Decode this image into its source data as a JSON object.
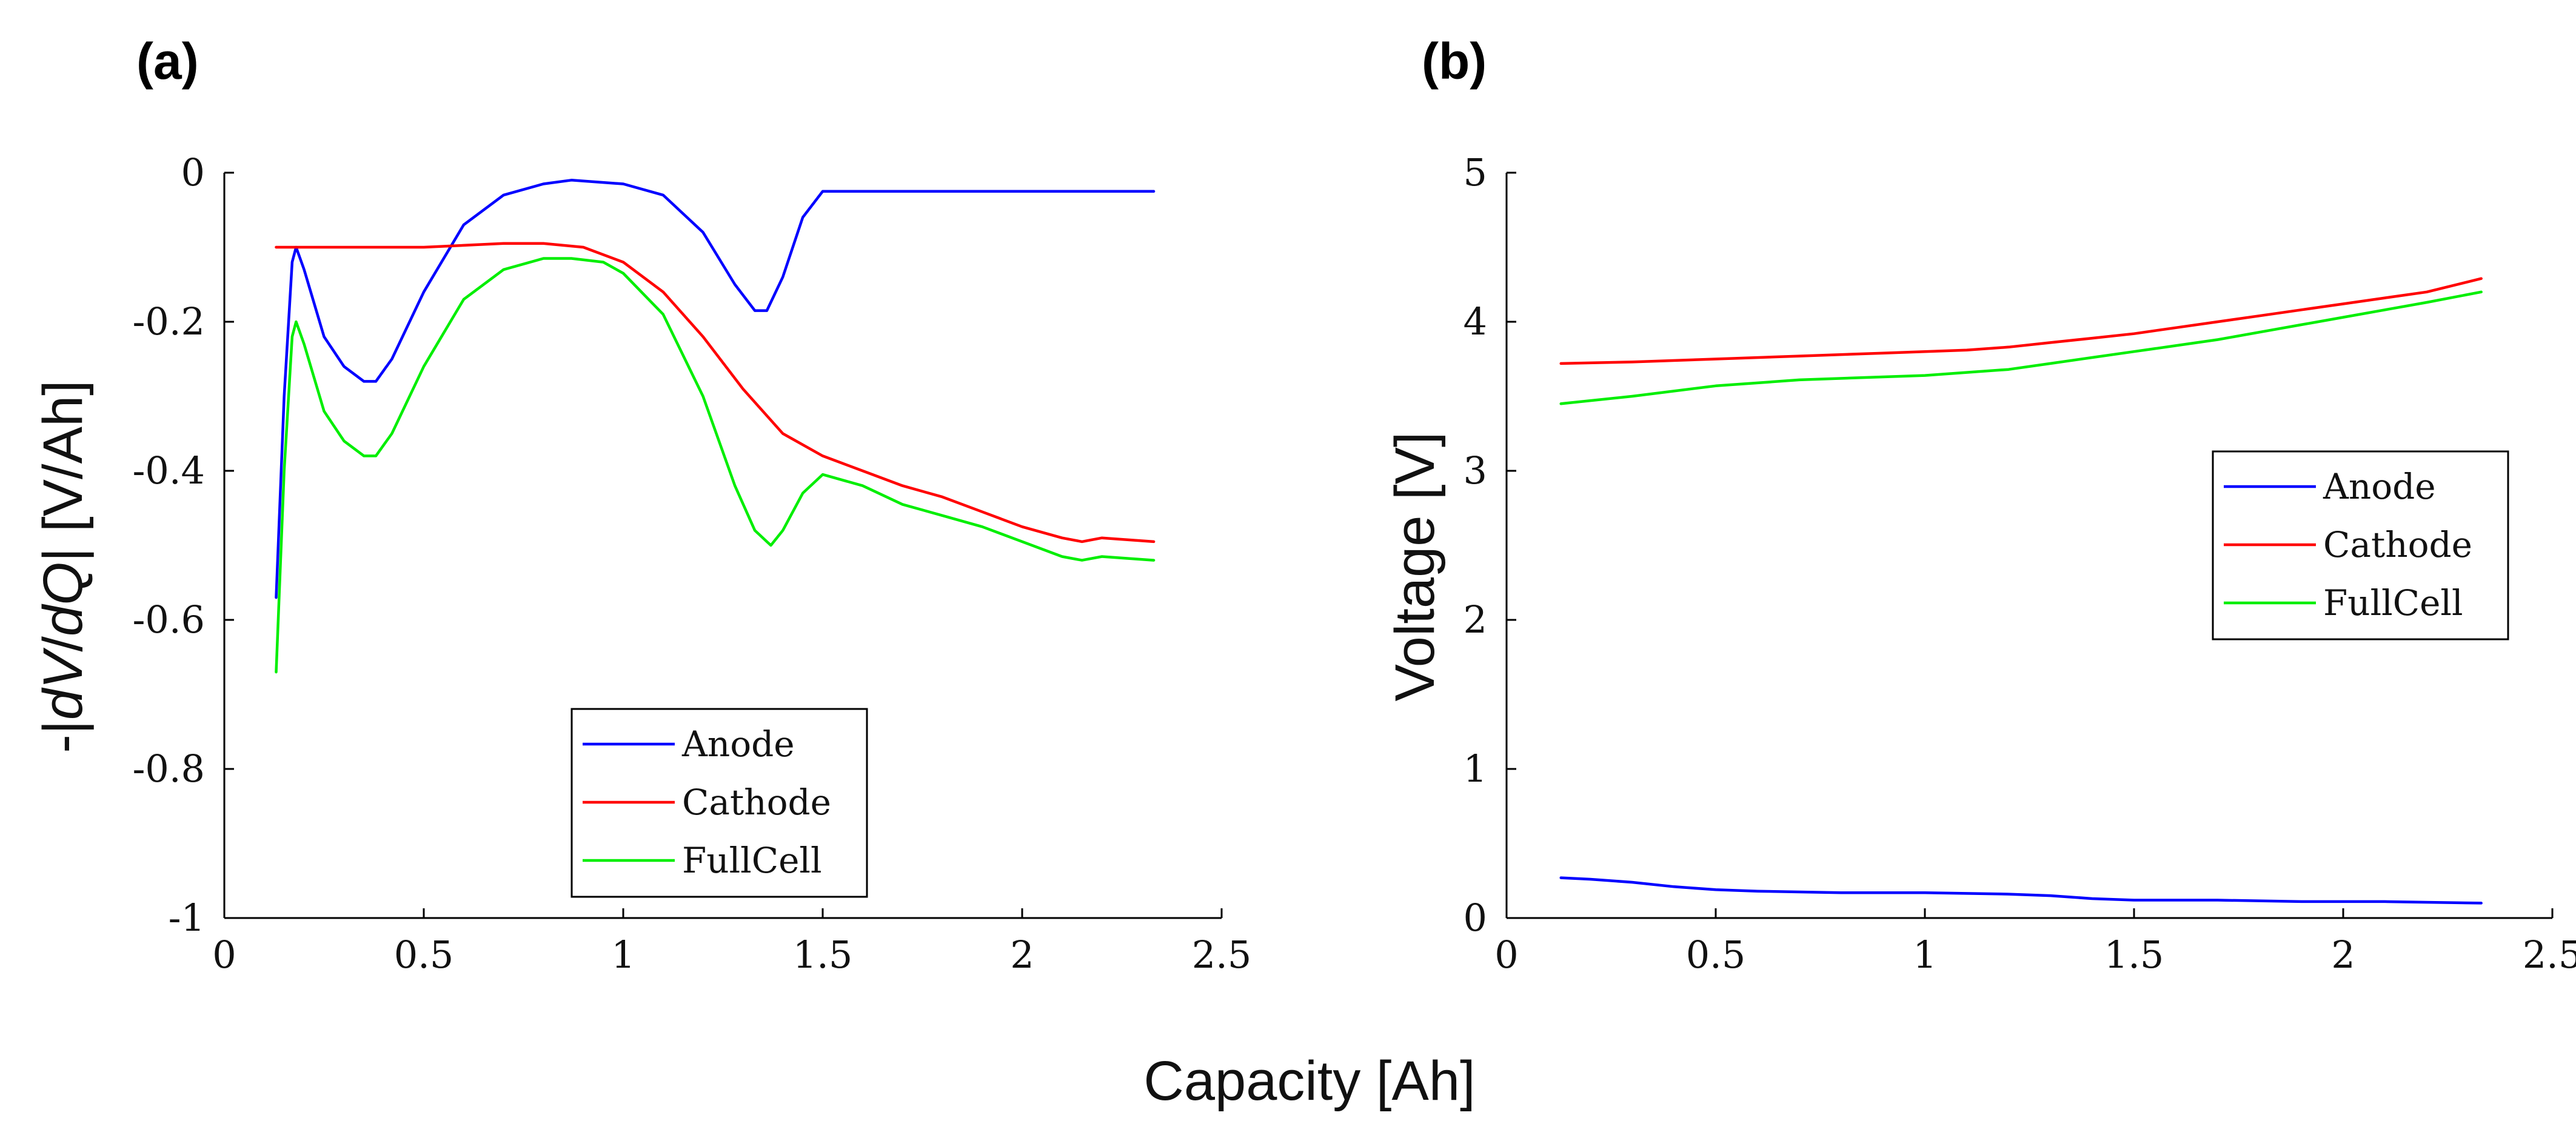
{
  "figure": {
    "xlabel": "Capacity [Ah]"
  },
  "chart_data": [
    {
      "type": "line",
      "panel_label": "(a)",
      "title": "",
      "xlabel": "",
      "ylabel": "-|dV/dQ| [V/Ah]",
      "ylabel_parts": [
        "-|",
        "dV",
        "/",
        "dQ",
        "| [V/Ah]"
      ],
      "xlim": [
        0,
        2.5
      ],
      "ylim": [
        -1,
        0
      ],
      "xticks": [
        0,
        0.5,
        1,
        1.5,
        2,
        2.5
      ],
      "xtick_labels": [
        "0",
        "0.5",
        "1",
        "1.5",
        "2",
        "2.5"
      ],
      "yticks": [
        -1,
        -0.8,
        -0.6,
        -0.4,
        -0.2,
        0
      ],
      "ytick_labels": [
        "-1",
        "-0.8",
        "-0.6",
        "-0.4",
        "-0.2",
        "0"
      ],
      "grid": false,
      "legend_position": "lower-center",
      "series": [
        {
          "name": "Anode",
          "color": "#0000ff",
          "x": [
            0.13,
            0.15,
            0.17,
            0.18,
            0.2,
            0.25,
            0.3,
            0.35,
            0.38,
            0.42,
            0.5,
            0.6,
            0.7,
            0.8,
            0.87,
            1.0,
            1.1,
            1.2,
            1.28,
            1.33,
            1.36,
            1.4,
            1.45,
            1.5,
            1.6,
            1.8,
            2.0,
            2.2,
            2.33
          ],
          "y": [
            -0.57,
            -0.3,
            -0.12,
            -0.1,
            -0.13,
            -0.22,
            -0.26,
            -0.28,
            -0.28,
            -0.25,
            -0.16,
            -0.07,
            -0.03,
            -0.015,
            -0.01,
            -0.015,
            -0.03,
            -0.08,
            -0.15,
            -0.185,
            -0.185,
            -0.14,
            -0.06,
            -0.025,
            -0.025,
            -0.025,
            -0.025,
            -0.025,
            -0.025
          ]
        },
        {
          "name": "Cathode",
          "color": "#ff0000",
          "x": [
            0.13,
            0.3,
            0.5,
            0.7,
            0.8,
            0.9,
            1.0,
            1.1,
            1.2,
            1.3,
            1.4,
            1.5,
            1.6,
            1.7,
            1.8,
            1.9,
            2.0,
            2.1,
            2.15,
            2.2,
            2.33
          ],
          "y": [
            -0.1,
            -0.1,
            -0.1,
            -0.095,
            -0.095,
            -0.1,
            -0.12,
            -0.16,
            -0.22,
            -0.29,
            -0.35,
            -0.38,
            -0.4,
            -0.42,
            -0.435,
            -0.455,
            -0.475,
            -0.49,
            -0.495,
            -0.49,
            -0.495
          ]
        },
        {
          "name": "FullCell",
          "color": "#00ee00",
          "x": [
            0.13,
            0.15,
            0.17,
            0.18,
            0.2,
            0.25,
            0.3,
            0.35,
            0.38,
            0.42,
            0.5,
            0.6,
            0.7,
            0.8,
            0.87,
            0.95,
            1.0,
            1.1,
            1.2,
            1.28,
            1.33,
            1.37,
            1.4,
            1.45,
            1.5,
            1.6,
            1.7,
            1.8,
            1.9,
            2.0,
            2.1,
            2.15,
            2.2,
            2.33
          ],
          "y": [
            -0.67,
            -0.4,
            -0.22,
            -0.2,
            -0.23,
            -0.32,
            -0.36,
            -0.38,
            -0.38,
            -0.35,
            -0.26,
            -0.17,
            -0.13,
            -0.115,
            -0.115,
            -0.12,
            -0.135,
            -0.19,
            -0.3,
            -0.42,
            -0.48,
            -0.5,
            -0.48,
            -0.43,
            -0.405,
            -0.42,
            -0.445,
            -0.46,
            -0.475,
            -0.495,
            -0.515,
            -0.52,
            -0.515,
            -0.52
          ]
        }
      ]
    },
    {
      "type": "line",
      "panel_label": "(b)",
      "title": "",
      "xlabel": "",
      "ylabel": "Voltage  [V]",
      "xlim": [
        0,
        2.5
      ],
      "ylim": [
        0,
        5
      ],
      "xticks": [
        0,
        0.5,
        1,
        1.5,
        2,
        2.5
      ],
      "xtick_labels": [
        "0",
        "0.5",
        "1",
        "1.5",
        "2",
        "2.5"
      ],
      "yticks": [
        0,
        1,
        2,
        3,
        4,
        5
      ],
      "ytick_labels": [
        "0",
        "1",
        "2",
        "3",
        "4",
        "5"
      ],
      "grid": false,
      "legend_position": "middle-right",
      "series": [
        {
          "name": "Anode",
          "color": "#0000ff",
          "x": [
            0.13,
            0.2,
            0.3,
            0.4,
            0.5,
            0.6,
            0.8,
            1.0,
            1.2,
            1.3,
            1.4,
            1.5,
            1.7,
            1.9,
            2.1,
            2.33
          ],
          "y": [
            0.27,
            0.26,
            0.24,
            0.21,
            0.19,
            0.18,
            0.17,
            0.17,
            0.16,
            0.15,
            0.13,
            0.12,
            0.12,
            0.11,
            0.11,
            0.1
          ]
        },
        {
          "name": "Cathode",
          "color": "#ff0000",
          "x": [
            0.13,
            0.3,
            0.5,
            0.7,
            0.9,
            1.0,
            1.1,
            1.2,
            1.3,
            1.4,
            1.5,
            1.6,
            1.7,
            1.8,
            1.9,
            2.0,
            2.1,
            2.2,
            2.33
          ],
          "y": [
            3.72,
            3.73,
            3.75,
            3.77,
            3.79,
            3.8,
            3.81,
            3.83,
            3.86,
            3.89,
            3.92,
            3.96,
            4.0,
            4.04,
            4.08,
            4.12,
            4.16,
            4.2,
            4.29
          ]
        },
        {
          "name": "FullCell",
          "color": "#00ee00",
          "x": [
            0.13,
            0.3,
            0.5,
            0.7,
            0.9,
            1.0,
            1.1,
            1.2,
            1.3,
            1.4,
            1.5,
            1.6,
            1.7,
            1.8,
            1.9,
            2.0,
            2.1,
            2.2,
            2.33
          ],
          "y": [
            3.45,
            3.5,
            3.57,
            3.61,
            3.63,
            3.64,
            3.66,
            3.68,
            3.72,
            3.76,
            3.8,
            3.84,
            3.88,
            3.93,
            3.98,
            4.03,
            4.08,
            4.13,
            4.2
          ]
        }
      ]
    }
  ]
}
